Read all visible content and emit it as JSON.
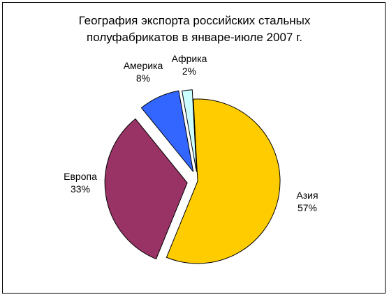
{
  "chart_data": {
    "type": "pie",
    "title_lines": [
      "География экспорта российских стальных",
      "полуфабрикатов в январе-июле 2007 г."
    ],
    "slices": [
      {
        "name": "Азия",
        "value": 57,
        "label": "57%",
        "color": "#FFCC00"
      },
      {
        "name": "Европа",
        "value": 33,
        "label": "33%",
        "color": "#993366"
      },
      {
        "name": "Америка",
        "value": 8,
        "label": "8%",
        "color": "#3366FF"
      },
      {
        "name": "Африка",
        "value": 2,
        "label": "2%",
        "color": "#CCFFFF"
      }
    ],
    "exploded": true,
    "legend": "none"
  }
}
